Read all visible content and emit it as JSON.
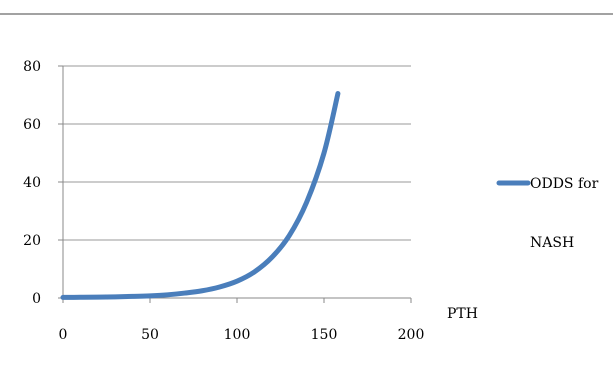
{
  "chart_data": {
    "type": "line",
    "title": "",
    "xlabel": "PTH",
    "ylabel": "",
    "xlim": [
      0,
      200
    ],
    "ylim": [
      0,
      80
    ],
    "x_ticks": [
      0,
      50,
      100,
      150,
      200
    ],
    "y_ticks": [
      0,
      20,
      40,
      60,
      80
    ],
    "x_tick_labels": [
      "0",
      "50",
      "100",
      "150",
      "200"
    ],
    "y_tick_labels": [
      "0",
      "20",
      "40",
      "60",
      "80"
    ],
    "grid": "horizontal",
    "legend_position": "right",
    "legend_lines": [
      "ODDS for",
      "NASH"
    ],
    "series": [
      {
        "name": "ODDS for NASH",
        "color": "#4a7ebb",
        "x": [
          0,
          10,
          20,
          30,
          40,
          50,
          60,
          70,
          80,
          90,
          100,
          110,
          120,
          130,
          140,
          150,
          158
        ],
        "y": [
          0.2,
          0.25,
          0.3,
          0.4,
          0.55,
          0.75,
          1.1,
          1.7,
          2.5,
          3.8,
          5.8,
          9.0,
          14.0,
          21.5,
          33.0,
          50.0,
          70.5
        ]
      }
    ]
  }
}
